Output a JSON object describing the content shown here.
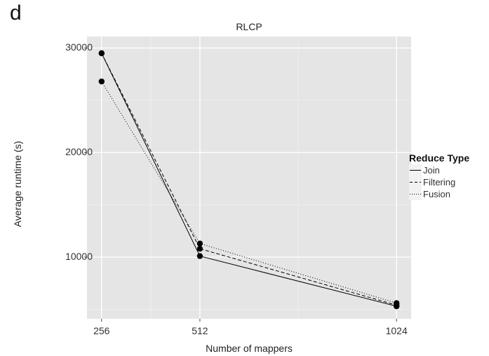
{
  "panel_letter": "d",
  "chart_data": {
    "type": "line",
    "title": "RLCP",
    "xlabel": "Number of mappers",
    "ylabel": "Average runtime (s)",
    "x_tick_labels": [
      "256",
      "512",
      "1024"
    ],
    "y_tick_labels": [
      "10000",
      "20000",
      "30000"
    ],
    "x_ticks": [
      256,
      512,
      1024
    ],
    "y_ticks": [
      10000,
      20000,
      30000
    ],
    "x_minor_ticks": [
      384,
      768
    ],
    "y_minor_ticks": [
      5000,
      15000,
      25000
    ],
    "xlim": [
      218,
      1062
    ],
    "ylim": [
      4100,
      31100
    ],
    "x": [
      256,
      512,
      1024
    ],
    "series": [
      {
        "name": "Join",
        "dash": "solid",
        "values": [
          29500,
          10100,
          5300
        ]
      },
      {
        "name": "Filtering",
        "dash": "dashed",
        "values": [
          29500,
          10800,
          5400
        ]
      },
      {
        "name": "Fusion",
        "dash": "dotted",
        "values": [
          26800,
          11300,
          5600
        ]
      }
    ],
    "legend": {
      "title": "Reduce Type",
      "position": "right"
    },
    "grid": true,
    "background": "#e5e5e5",
    "line_color": "#000000"
  }
}
